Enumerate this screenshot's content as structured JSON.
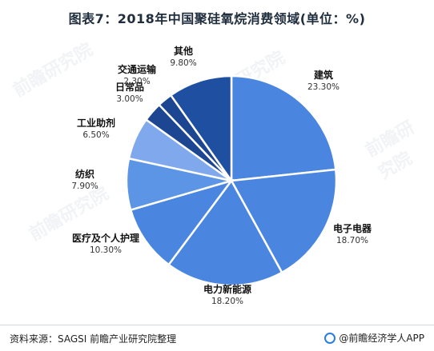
{
  "title": "图表7：2018年中国聚硅氧烷消费领域(单位：%)",
  "footer": {
    "source": "资料来源：SAGSI 前瞻产业研究院整理",
    "brand": "@前瞻经济学人APP"
  },
  "watermark": "前瞻研究院",
  "colors": {
    "main": "#4a86e0",
    "dark": "#1f4fa0",
    "light": "#7fa9ec"
  },
  "chart_data": {
    "type": "pie",
    "slices": [
      {
        "name": "建筑",
        "value": 23.3,
        "label": "23.30%",
        "color": "#4a86e0",
        "icon": "pie-slice"
      },
      {
        "name": "电子电器",
        "value": 18.7,
        "label": "18.70%",
        "color": "#4a86e0",
        "icon": "pie-slice"
      },
      {
        "name": "电力新能源",
        "value": 18.2,
        "label": "18.20%",
        "color": "#4a86e0",
        "icon": "pie-slice"
      },
      {
        "name": "医疗及个人护理",
        "value": 10.3,
        "label": "10.30%",
        "color": "#4a86e0",
        "icon": "pie-slice"
      },
      {
        "name": "纺织",
        "value": 7.9,
        "label": "7.90%",
        "color": "#5d95e6",
        "icon": "pie-slice"
      },
      {
        "name": "工业助剂",
        "value": 6.5,
        "label": "6.50%",
        "color": "#7fa9ec",
        "icon": "pie-slice"
      },
      {
        "name": "日常品",
        "value": 3.0,
        "label": "3.00%",
        "color": "#1c4592",
        "icon": "pie-slice"
      },
      {
        "name": "交通运输",
        "value": 2.3,
        "label": "2.30%",
        "color": "#1c4592",
        "icon": "pie-slice"
      },
      {
        "name": "其他",
        "value": 9.8,
        "label": "9.80%",
        "color": "#1f4fa0",
        "icon": "pie-slice"
      }
    ]
  }
}
